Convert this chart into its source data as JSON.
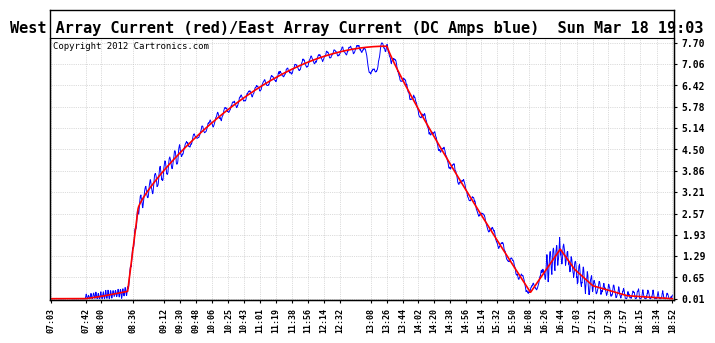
{
  "title": "West Array Current (red)/East Array Current (DC Amps blue)  Sun Mar 18 19:03",
  "copyright": "Copyright 2012 Cartronics.com",
  "yticks": [
    0.01,
    0.65,
    1.29,
    1.93,
    2.57,
    3.21,
    3.86,
    4.5,
    5.14,
    5.78,
    6.42,
    7.06,
    7.7
  ],
  "xtick_labels": [
    "07:03",
    "07:42",
    "08:00",
    "08:36",
    "09:12",
    "09:30",
    "09:48",
    "10:06",
    "10:25",
    "10:43",
    "11:01",
    "11:19",
    "11:38",
    "11:56",
    "12:14",
    "12:32",
    "13:08",
    "13:26",
    "13:44",
    "14:02",
    "14:20",
    "14:38",
    "14:56",
    "15:14",
    "15:32",
    "15:50",
    "16:08",
    "16:26",
    "16:44",
    "17:03",
    "17:21",
    "17:39",
    "17:57",
    "18:15",
    "18:34",
    "18:52"
  ],
  "ymin": 0.01,
  "ymax": 7.7,
  "background_color": "#ffffff",
  "plot_bg_color": "#ffffff",
  "grid_color": "#bbbbbb",
  "red_color": "#ff0000",
  "blue_color": "#0000ff",
  "title_fontsize": 11,
  "copyright_fontsize": 6.5
}
